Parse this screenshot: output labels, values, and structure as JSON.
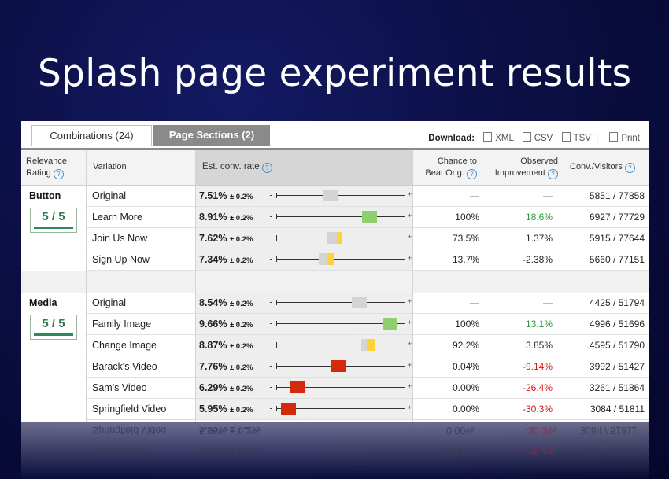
{
  "slide_title": "Splash page experiment results",
  "tabs": [
    {
      "label": "Combinations (24)",
      "active": false
    },
    {
      "label": "Page Sections (2)",
      "active": true
    }
  ],
  "download": {
    "label": "Download:",
    "xml": "XML",
    "csv": "CSV",
    "tsv": "TSV",
    "sep": "|",
    "print": "Print"
  },
  "headers": {
    "relevance_1": "Relevance",
    "relevance_2": "Rating",
    "variation": "Variation",
    "est_rate": "Est. conv. rate",
    "chance_1": "Chance to",
    "chance_2": "Beat Orig.",
    "improvement_1": "Observed",
    "improvement_2": "Improvement",
    "conv": "Conv./Visitors",
    "help": "?"
  },
  "sections": [
    {
      "name": "Button",
      "rating": "5 / 5",
      "rows": [
        {
          "variation": "Original",
          "rate": "7.51%",
          "pm": "± 0.2%",
          "chance": "—",
          "improvement": "—",
          "conv": "5851 / 77858",
          "interval": [
            7.24,
            7.78
          ],
          "color": "#d4d4d4",
          "impr_class": ""
        },
        {
          "variation": "Learn More",
          "rate": "8.91%",
          "pm": "± 0.2%",
          "chance": "100%",
          "improvement": "18.6%",
          "conv": "6927 / 77729",
          "interval": [
            8.64,
            9.18
          ],
          "color": "#8fcf6f",
          "impr_class": "pos"
        },
        {
          "variation": "Join Us Now",
          "rate": "7.62%",
          "pm": "± 0.2%",
          "chance": "73.5%",
          "improvement": "1.37%",
          "conv": "5915 / 77644",
          "interval": [
            7.35,
            7.89
          ],
          "color": "#ffd23a",
          "split": 0.7,
          "impr_class": ""
        },
        {
          "variation": "Sign Up Now",
          "rate": "7.34%",
          "pm": "± 0.2%",
          "chance": "13.7%",
          "improvement": "-2.38%",
          "conv": "5660 / 77151",
          "interval": [
            7.07,
            7.61
          ],
          "color": "#ffd23a",
          "split": 0.5,
          "impr_class": ""
        }
      ]
    },
    {
      "name": "Media",
      "rating": "5 / 5",
      "rows": [
        {
          "variation": "Original",
          "rate": "8.54%",
          "pm": "± 0.2%",
          "chance": "—",
          "improvement": "—",
          "conv": "4425 / 51794",
          "interval": [
            8.27,
            8.81
          ],
          "color": "#d4d4d4",
          "impr_class": ""
        },
        {
          "variation": "Family Image",
          "rate": "9.66%",
          "pm": "± 0.2%",
          "chance": "100%",
          "improvement": "13.1%",
          "conv": "4996 / 51696",
          "interval": [
            9.39,
            9.93
          ],
          "color": "#8fcf6f",
          "impr_class": "pos"
        },
        {
          "variation": "Change Image",
          "rate": "8.87%",
          "pm": "± 0.2%",
          "chance": "92.2%",
          "improvement": "3.85%",
          "conv": "4595 / 51790",
          "interval": [
            8.6,
            9.14
          ],
          "color": "#ffd23a",
          "split": 0.4,
          "impr_class": ""
        },
        {
          "variation": "Barack's Video",
          "rate": "7.76%",
          "pm": "± 0.2%",
          "chance": "0.04%",
          "improvement": "-9.14%",
          "conv": "3992 / 51427",
          "interval": [
            7.49,
            8.03
          ],
          "color": "#d42a0c",
          "impr_class": "neg"
        },
        {
          "variation": "Sam's Video",
          "rate": "6.29%",
          "pm": "± 0.2%",
          "chance": "0.00%",
          "improvement": "-26.4%",
          "conv": "3261 / 51864",
          "interval": [
            6.02,
            6.56
          ],
          "color": "#d42a0c",
          "impr_class": "neg"
        },
        {
          "variation": "Springfield Video",
          "rate": "5.95%",
          "pm": "± 0.2%",
          "chance": "0.00%",
          "improvement": "-30.3%",
          "conv": "3084 / 51811",
          "interval": [
            5.68,
            6.22
          ],
          "color": "#d42a0c",
          "impr_class": "neg"
        }
      ]
    }
  ],
  "reflection": [
    {
      "variation": "Springfield Video",
      "rate": "5.95% ± 0.2%",
      "chance": "0.00%",
      "improvement": "-30.3%",
      "conv": "3084 / 51811"
    },
    {
      "variation": "Sam's Video",
      "rate": "6.29% ± 0.2%",
      "chance": "0.00%",
      "improvement": "-26.4%",
      "conv": "3261 / 51864"
    }
  ]
}
